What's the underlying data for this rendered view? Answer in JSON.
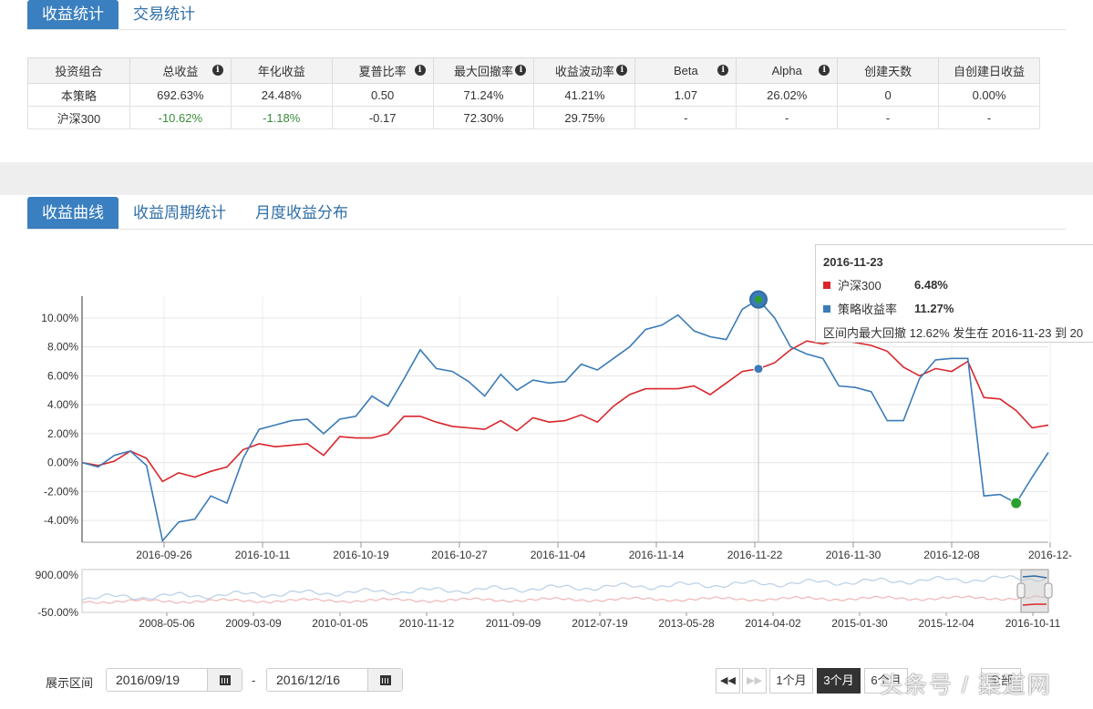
{
  "top_tabs": [
    {
      "label": "收益统计"
    },
    {
      "label": "交易统计"
    }
  ],
  "stats_table": {
    "headers": [
      "投资组合",
      "总收益",
      "年化收益",
      "夏普比率",
      "最大回撤率",
      "收益波动率",
      "Beta",
      "Alpha",
      "创建天数",
      "自创建日收益"
    ],
    "rows": [
      [
        "本策略",
        "692.63%",
        "24.48%",
        "0.50",
        "71.24%",
        "41.21%",
        "1.07",
        "26.02%",
        "0",
        "0.00%"
      ],
      [
        "沪深300",
        "-10.62%",
        "-1.18%",
        "-0.17",
        "72.30%",
        "29.75%",
        "-",
        "-",
        "-",
        "-"
      ]
    ]
  },
  "chart_tabs": [
    {
      "label": "收益曲线"
    },
    {
      "label": "收益周期统计"
    },
    {
      "label": "月度收益分布"
    }
  ],
  "chart_data": [
    {
      "type": "line",
      "title": "",
      "ylim": [
        -5.5,
        11.5
      ],
      "y_ticks": [
        "10.00%",
        "8.00%",
        "6.00%",
        "4.00%",
        "2.00%",
        "0.00%",
        "-2.00%",
        "-4.00%"
      ],
      "x_ticks": [
        "2016-09-26",
        "2016-10-11",
        "2016-10-19",
        "2016-10-27",
        "2016-11-04",
        "2016-11-14",
        "2016-11-22",
        "2016-11-30",
        "2016-12-08",
        "2016-12-"
      ],
      "grid": true,
      "series": [
        {
          "name": "沪深300",
          "color": "#d9262c",
          "values": [
            0.0,
            -0.2,
            0.1,
            0.8,
            0.3,
            -1.3,
            -0.7,
            -1.0,
            -0.6,
            -0.3,
            0.9,
            1.3,
            1.1,
            1.2,
            1.3,
            0.5,
            1.8,
            1.7,
            1.7,
            2.0,
            3.2,
            3.2,
            2.8,
            2.5,
            2.4,
            2.3,
            2.9,
            2.2,
            3.1,
            2.8,
            2.9,
            3.3,
            2.8,
            3.9,
            4.7,
            5.1,
            5.1,
            5.1,
            5.3,
            4.7,
            5.5,
            6.3,
            6.48,
            6.9,
            7.8,
            8.4,
            8.2,
            8.5,
            8.3,
            8.1,
            7.7,
            6.6,
            6.0,
            6.5,
            6.3,
            7.0,
            4.5,
            4.4,
            3.6,
            2.4,
            2.6
          ]
        },
        {
          "name": "策略收益率",
          "color": "#3b7bb8",
          "values": [
            0.0,
            -0.3,
            0.5,
            0.8,
            -0.2,
            -5.4,
            -4.1,
            -3.9,
            -2.3,
            -2.8,
            0.3,
            2.3,
            2.6,
            2.9,
            3.0,
            2.0,
            3.0,
            3.2,
            4.6,
            3.9,
            5.8,
            7.8,
            6.5,
            6.3,
            5.6,
            4.6,
            6.1,
            5.0,
            5.7,
            5.5,
            5.6,
            6.8,
            6.4,
            7.2,
            8.0,
            9.2,
            9.5,
            10.2,
            9.1,
            8.7,
            8.5,
            10.6,
            11.27,
            10.0,
            8.0,
            7.5,
            7.2,
            5.3,
            5.2,
            4.9,
            2.9,
            2.9,
            5.8,
            7.1,
            7.2,
            7.2,
            -2.3,
            -2.2,
            -2.8,
            -1.0,
            0.7
          ]
        }
      ],
      "markers": [
        {
          "label": "peak",
          "series": "策略收益率",
          "index": 42,
          "color": "#3b7bb8"
        },
        {
          "label": "trough",
          "series": "策略收益率",
          "index": 58,
          "color": "#2ca02c"
        }
      ]
    },
    {
      "type": "area",
      "title": "",
      "ylim": [
        -50,
        900
      ],
      "y_ticks": [
        "900.00%",
        "-50.00%"
      ],
      "x_ticks": [
        "2008-05-06",
        "2009-03-09",
        "2010-01-05",
        "2010-11-12",
        "2011-09-09",
        "2012-07-19",
        "2013-05-28",
        "2014-04-02",
        "2015-01-30",
        "2015-12-04",
        "2016-10-11"
      ]
    }
  ],
  "tooltip": {
    "date": "2016-11-23",
    "rows": [
      {
        "name": "沪深300",
        "value": "6.48%",
        "color": "#d9262c"
      },
      {
        "name": "策略收益率",
        "value": "11.27%",
        "color": "#3b7bb8"
      }
    ],
    "note": "区间内最大回撤 12.62% 发生在 2016-11-23 到 20"
  },
  "range": {
    "label": "展示区间",
    "start": "2016/09/19",
    "separator": "-",
    "end": "2016/12/16"
  },
  "period_buttons": [
    "1个月",
    "3个月",
    "6个月",
    "全部"
  ],
  "active_period": "3个月",
  "watermark": "头条号 / 渠道网"
}
